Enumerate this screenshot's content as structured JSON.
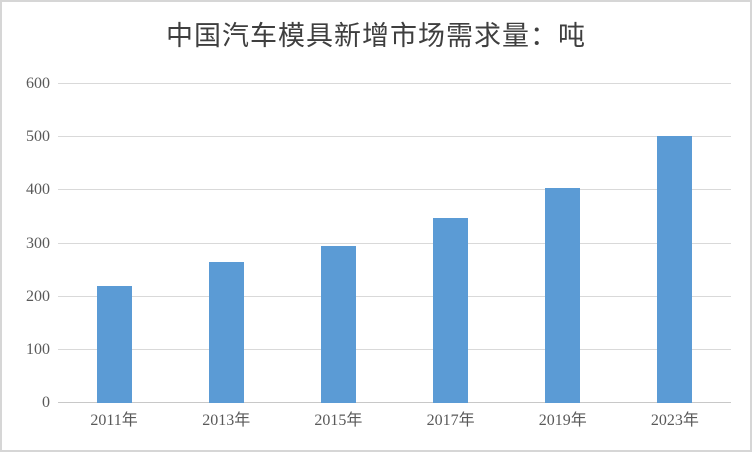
{
  "chart_data": {
    "type": "bar",
    "title": "中国汽车模具新增市场需求量：吨",
    "categories": [
      "2011年",
      "2013年",
      "2015年",
      "2017年",
      "2019年",
      "2023年"
    ],
    "values": [
      220,
      265,
      295,
      348,
      405,
      502
    ],
    "xlabel": "",
    "ylabel": "",
    "ylim": [
      0,
      600
    ],
    "ytick_step": 100,
    "yticks": [
      0,
      100,
      200,
      300,
      400,
      500,
      600
    ],
    "grid": true,
    "legend_position": "none",
    "bar_color": "#5B9BD5",
    "gridline_color": "#D9D9D9",
    "axis_line_color": "#C8C8C8",
    "tick_label_color": "#595959",
    "title_color": "#3F3F3F",
    "background_color": "#FFFFFF",
    "border_color": "#D6D6D6"
  }
}
